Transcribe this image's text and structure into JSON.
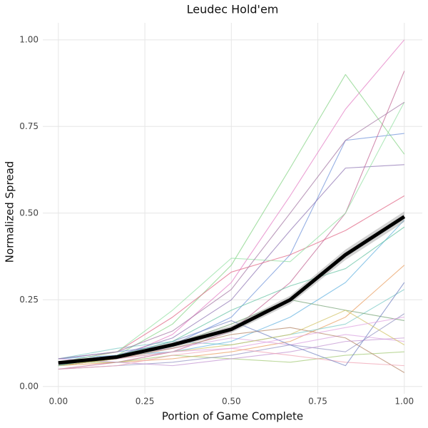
{
  "chart_data": {
    "type": "line",
    "title": "Leudec Hold'em",
    "x_label": "Portion of Game Complete",
    "y_label": "Normalized Spread",
    "x": [
      0,
      0.17,
      0.33,
      0.5,
      0.67,
      0.83,
      1
    ],
    "xlim": [
      -0.045,
      1.052
    ],
    "ylim": [
      -0.021,
      1.049
    ],
    "xticks": [
      {
        "value": 0,
        "label": "0.00"
      },
      {
        "value": 0.25,
        "label": "0.25"
      },
      {
        "value": 0.5,
        "label": "0.50"
      },
      {
        "value": 0.75,
        "label": "0.75"
      },
      {
        "value": 1,
        "label": "1.00"
      }
    ],
    "yticks": [
      {
        "value": 0,
        "label": "0.00"
      },
      {
        "value": 0.25,
        "label": "0.25"
      },
      {
        "value": 0.5,
        "label": "0.50"
      },
      {
        "value": 0.75,
        "label": "0.75"
      },
      {
        "value": 1,
        "label": "1.00"
      }
    ],
    "grid": true,
    "series": [
      {
        "color": "#e377c2",
        "values": [
          0.06,
          0.08,
          0.15,
          0.3,
          0.55,
          0.8,
          1.0
        ]
      },
      {
        "color": "#7fd17f",
        "values": [
          0.07,
          0.09,
          0.18,
          0.35,
          0.63,
          0.9,
          0.67
        ]
      },
      {
        "color": "#6a8fd8",
        "values": [
          0.08,
          0.1,
          0.12,
          0.2,
          0.38,
          0.71,
          0.73
        ]
      },
      {
        "color": "#c06090",
        "values": [
          0.05,
          0.07,
          0.1,
          0.16,
          0.3,
          0.5,
          0.91
        ]
      },
      {
        "color": "#8a6fb0",
        "values": [
          0.07,
          0.09,
          0.14,
          0.25,
          0.45,
          0.63,
          0.64
        ]
      },
      {
        "color": "#e89a5a",
        "values": [
          0.06,
          0.07,
          0.08,
          0.1,
          0.13,
          0.2,
          0.35
        ]
      },
      {
        "color": "#77c9c4",
        "values": [
          0.08,
          0.11,
          0.13,
          0.12,
          0.15,
          0.18,
          0.28
        ]
      },
      {
        "color": "#d9a0e0",
        "values": [
          0.06,
          0.09,
          0.11,
          0.14,
          0.12,
          0.15,
          0.13
        ]
      },
      {
        "color": "#a0c870",
        "values": [
          0.07,
          0.07,
          0.09,
          0.08,
          0.07,
          0.09,
          0.1
        ]
      },
      {
        "color": "#9090c0",
        "values": [
          0.05,
          0.06,
          0.07,
          0.09,
          0.12,
          0.1,
          0.21
        ]
      },
      {
        "color": "#e06080",
        "values": [
          0.07,
          0.1,
          0.2,
          0.33,
          0.38,
          0.45,
          0.55
        ]
      },
      {
        "color": "#60b0e0",
        "values": [
          0.08,
          0.09,
          0.1,
          0.13,
          0.2,
          0.3,
          0.48
        ]
      },
      {
        "color": "#b08060",
        "values": [
          0.06,
          0.08,
          0.11,
          0.15,
          0.17,
          0.14,
          0.04
        ]
      },
      {
        "color": "#90e0a0",
        "values": [
          0.07,
          0.1,
          0.22,
          0.37,
          0.36,
          0.5,
          0.82
        ]
      },
      {
        "color": "#c090d0",
        "values": [
          0.08,
          0.07,
          0.06,
          0.08,
          0.1,
          0.13,
          0.14
        ]
      },
      {
        "color": "#70a070",
        "values": [
          0.06,
          0.08,
          0.12,
          0.18,
          0.25,
          0.22,
          0.19
        ]
      },
      {
        "color": "#f0a0b0",
        "values": [
          0.05,
          0.06,
          0.09,
          0.11,
          0.09,
          0.07,
          0.06
        ]
      },
      {
        "color": "#7080c0",
        "values": [
          0.07,
          0.09,
          0.13,
          0.19,
          0.12,
          0.06,
          0.3
        ]
      },
      {
        "color": "#d0c060",
        "values": [
          0.06,
          0.08,
          0.1,
          0.12,
          0.15,
          0.22,
          0.12
        ]
      },
      {
        "color": "#a070a0",
        "values": [
          0.08,
          0.1,
          0.16,
          0.28,
          0.5,
          0.71,
          0.82
        ]
      },
      {
        "color": "#60c0a0",
        "values": [
          0.06,
          0.09,
          0.13,
          0.22,
          0.29,
          0.34,
          0.46
        ]
      },
      {
        "color": "#e0a0e0",
        "values": [
          0.07,
          0.08,
          0.1,
          0.11,
          0.14,
          0.17,
          0.2
        ]
      },
      {
        "color": "#000000",
        "values": [
          0.068,
          0.085,
          0.12,
          0.165,
          0.25,
          0.38,
          0.49
        ],
        "lower": [
          0.062,
          0.08,
          0.112,
          0.155,
          0.238,
          0.365,
          0.475
        ],
        "upper": [
          0.074,
          0.09,
          0.128,
          0.175,
          0.262,
          0.395,
          0.505
        ]
      }
    ]
  }
}
